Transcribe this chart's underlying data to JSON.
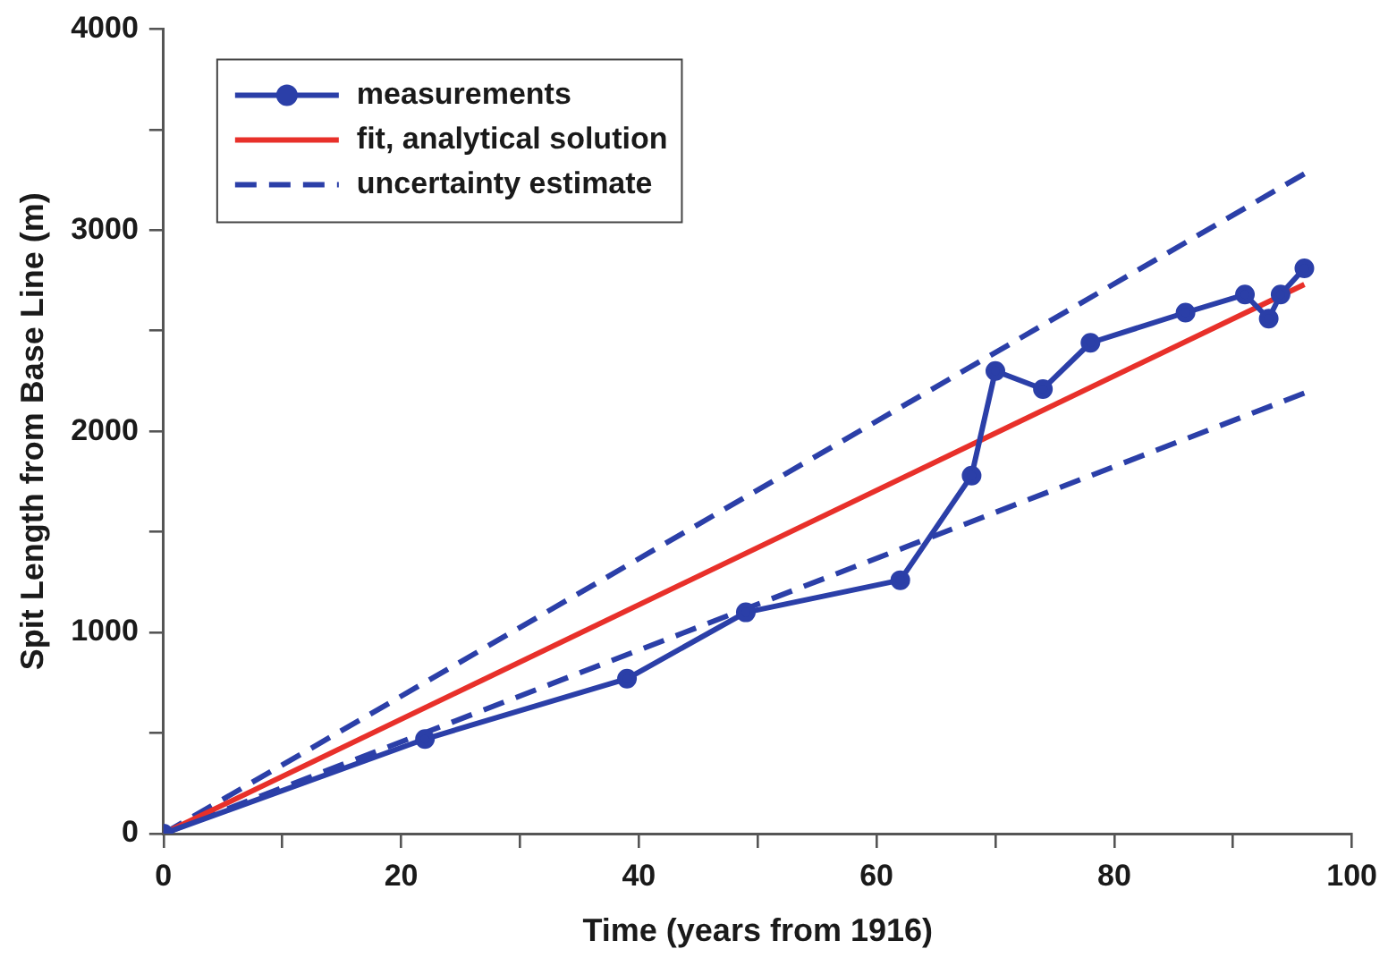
{
  "chart_data": {
    "type": "line",
    "xlabel": "Time (years from 1916)",
    "ylabel": "Spit Length from Base Line (m)",
    "xlim": [
      0,
      100
    ],
    "ylim": [
      0,
      4000
    ],
    "xticks": [
      0,
      {
        "value": 10,
        "label": null
      },
      20,
      {
        "value": 30,
        "label": null
      },
      40,
      {
        "value": 50,
        "label": null
      },
      60,
      {
        "value": 70,
        "label": null
      },
      80,
      {
        "value": 90,
        "label": null
      },
      100
    ],
    "yticks": [
      0,
      {
        "value": 500,
        "label": null
      },
      1000,
      {
        "value": 1500,
        "label": null
      },
      2000,
      {
        "value": 2500,
        "label": null
      },
      3000,
      {
        "value": 3500,
        "label": null
      },
      4000
    ],
    "grid": false,
    "legend": "top left",
    "series": [
      {
        "name": "measurements",
        "color": "#2b3fa8",
        "marker": "circle",
        "line_style": "solid",
        "x": [
          0,
          22,
          39,
          49,
          62,
          68,
          70,
          74,
          78,
          86,
          91,
          93,
          94,
          96
        ],
        "values": [
          0,
          470,
          770,
          1100,
          1260,
          1780,
          2300,
          2210,
          2440,
          2590,
          2680,
          2560,
          2680,
          2810
        ]
      },
      {
        "name": "fit, analytical solution",
        "color": "#e8302a",
        "marker": "none",
        "line_style": "solid",
        "x": [
          0,
          96
        ],
        "values": [
          0,
          2730
        ]
      },
      {
        "name": "uncertainty estimate",
        "color": "#2b3fa8",
        "marker": "none",
        "line_style": "dashed",
        "x": [
          0,
          96
        ],
        "values": [
          0,
          3280
        ]
      },
      {
        "color": "#2b3fa8",
        "marker": "none",
        "line_style": "dashed",
        "x": [
          0,
          96
        ],
        "values": [
          0,
          2190
        ]
      }
    ]
  }
}
